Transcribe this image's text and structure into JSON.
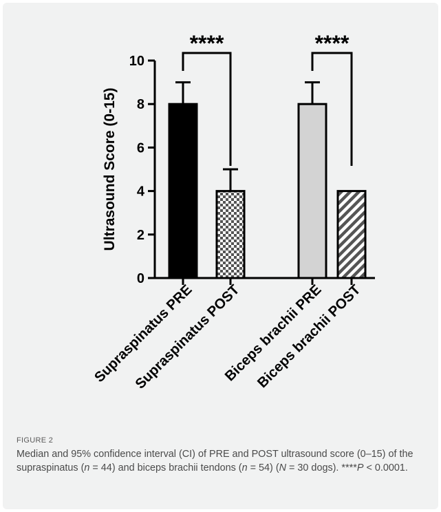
{
  "figure": {
    "label": "FIGURE 2",
    "caption_parts": [
      {
        "t": "Median and 95% confidence interval (CI) of PRE and POST ultrasound score (0–15) of the supraspinatus (",
        "i": false
      },
      {
        "t": "n",
        "i": true
      },
      {
        "t": " = 44) and biceps brachii tendons (",
        "i": false
      },
      {
        "t": "n",
        "i": true
      },
      {
        "t": " = 54) (",
        "i": false
      },
      {
        "t": "N",
        "i": true
      },
      {
        "t": " = 30 dogs). ****",
        "i": false
      },
      {
        "t": "P",
        "i": true
      },
      {
        "t": " < 0.0001.",
        "i": false
      }
    ]
  },
  "colors": {
    "card_background": "#f1f2f2",
    "bar_outline": "#000000",
    "supraspinatus_pre_fill": "#000000",
    "biceps_pre_fill": "#d3d3d3",
    "post_pattern_light": "#ffffff",
    "post_pattern_dark": "#555555"
  },
  "chart_data": {
    "type": "bar",
    "ylabel": "Ultrasound  Score (0-15)",
    "xlabel": "",
    "ylim": [
      0,
      10
    ],
    "yticks": [
      0,
      2,
      4,
      6,
      8,
      10
    ],
    "grid": false,
    "categories": [
      "Supraspinatus PRE",
      "Supraspinatus POST",
      "Biceps brachii PRE",
      "Biceps brachii POST"
    ],
    "values": [
      8,
      4,
      8,
      4
    ],
    "error_upper": [
      9,
      5,
      9,
      4
    ],
    "fills": [
      "solid-black",
      "checkerboard",
      "solid-lightgray",
      "diagonal-stripes"
    ],
    "significance": [
      {
        "from": 0,
        "to": 1,
        "label": "****"
      },
      {
        "from": 2,
        "to": 3,
        "label": "****"
      }
    ]
  }
}
